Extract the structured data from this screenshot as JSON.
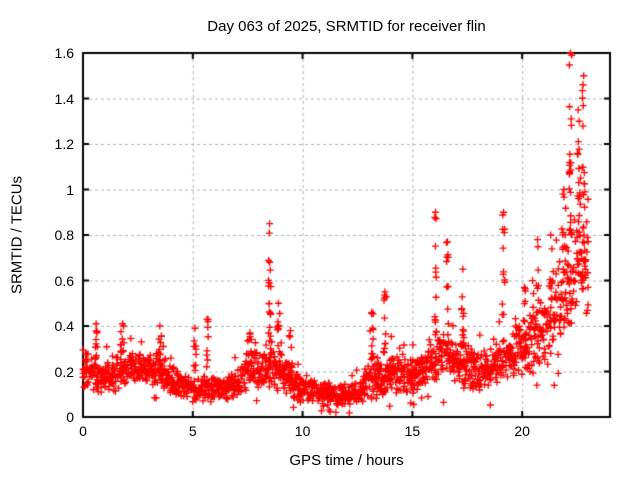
{
  "chart_data": {
    "type": "scatter",
    "title": "Day 063 of 2025, SRMTID for receiver flin",
    "xlabel": "GPS time / hours",
    "ylabel": "SRMTID / TECUs",
    "xlim": [
      0,
      24
    ],
    "ylim": [
      0,
      1.6
    ],
    "xticks": [
      0,
      5,
      10,
      15,
      20
    ],
    "xtick_labels": [
      "0",
      "5",
      "10",
      "15",
      "20"
    ],
    "yticks": [
      0,
      0.2,
      0.4,
      0.6,
      0.8,
      1,
      1.2,
      1.4,
      1.6
    ],
    "ytick_labels": [
      "0",
      "0.2",
      "0.4",
      "0.6",
      "0.8",
      "1",
      "1.2",
      "1.4",
      "1.6"
    ],
    "grid": true,
    "legend_position": "none",
    "marker": "+",
    "marker_color": "#ff0000",
    "grid_color": "#b3b3b3",
    "axis_color": "#000000",
    "text_color": "#000000",
    "time_span_hours": [
      0,
      23.0
    ],
    "band_profile": [
      [
        0.0,
        0.12,
        0.33
      ],
      [
        0.5,
        0.1,
        0.28
      ],
      [
        1.0,
        0.09,
        0.26
      ],
      [
        1.5,
        0.11,
        0.3
      ],
      [
        2.0,
        0.13,
        0.3
      ],
      [
        2.5,
        0.14,
        0.3
      ],
      [
        3.0,
        0.13,
        0.28
      ],
      [
        3.5,
        0.12,
        0.3
      ],
      [
        4.0,
        0.09,
        0.24
      ],
      [
        4.5,
        0.07,
        0.2
      ],
      [
        5.0,
        0.06,
        0.18
      ],
      [
        5.5,
        0.06,
        0.2
      ],
      [
        6.0,
        0.05,
        0.18
      ],
      [
        6.5,
        0.06,
        0.18
      ],
      [
        7.0,
        0.07,
        0.22
      ],
      [
        7.5,
        0.1,
        0.3
      ],
      [
        8.0,
        0.1,
        0.32
      ],
      [
        8.5,
        0.12,
        0.35
      ],
      [
        9.0,
        0.1,
        0.3
      ],
      [
        9.5,
        0.08,
        0.26
      ],
      [
        10.0,
        0.05,
        0.18
      ],
      [
        10.5,
        0.04,
        0.17
      ],
      [
        11.0,
        0.04,
        0.16
      ],
      [
        11.5,
        0.04,
        0.15
      ],
      [
        12.0,
        0.04,
        0.15
      ],
      [
        12.5,
        0.05,
        0.17
      ],
      [
        13.0,
        0.06,
        0.25
      ],
      [
        13.5,
        0.08,
        0.28
      ],
      [
        14.0,
        0.09,
        0.3
      ],
      [
        14.5,
        0.08,
        0.26
      ],
      [
        15.0,
        0.09,
        0.28
      ],
      [
        15.5,
        0.11,
        0.32
      ],
      [
        16.0,
        0.14,
        0.38
      ],
      [
        16.5,
        0.15,
        0.38
      ],
      [
        17.0,
        0.14,
        0.35
      ],
      [
        17.5,
        0.12,
        0.34
      ],
      [
        18.0,
        0.1,
        0.3
      ],
      [
        18.5,
        0.12,
        0.32
      ],
      [
        19.0,
        0.14,
        0.38
      ],
      [
        19.5,
        0.15,
        0.4
      ],
      [
        20.0,
        0.16,
        0.44
      ],
      [
        20.5,
        0.18,
        0.5
      ],
      [
        21.0,
        0.2,
        0.55
      ],
      [
        21.5,
        0.24,
        0.65
      ],
      [
        22.0,
        0.3,
        0.85
      ],
      [
        22.5,
        0.38,
        1.05
      ],
      [
        23.0,
        0.35,
        0.95
      ]
    ],
    "spikes": [
      [
        0.6,
        0.15,
        0.26,
        0.41,
        10
      ],
      [
        1.8,
        0.2,
        0.28,
        0.41,
        8
      ],
      [
        3.5,
        0.15,
        0.27,
        0.4,
        8
      ],
      [
        5.1,
        0.1,
        0.17,
        0.39,
        7
      ],
      [
        5.65,
        0.1,
        0.19,
        0.43,
        8
      ],
      [
        7.6,
        0.2,
        0.27,
        0.37,
        8
      ],
      [
        8.5,
        0.12,
        0.33,
        0.85,
        16
      ],
      [
        8.9,
        0.12,
        0.28,
        0.5,
        8
      ],
      [
        9.45,
        0.15,
        0.22,
        0.38,
        8
      ],
      [
        13.15,
        0.2,
        0.24,
        0.46,
        10
      ],
      [
        13.75,
        0.15,
        0.27,
        0.55,
        10
      ],
      [
        16.05,
        0.1,
        0.36,
        0.9,
        14
      ],
      [
        16.6,
        0.12,
        0.35,
        0.77,
        10
      ],
      [
        17.3,
        0.12,
        0.32,
        0.65,
        9
      ],
      [
        19.15,
        0.12,
        0.36,
        0.9,
        12
      ],
      [
        20.1,
        0.1,
        0.4,
        0.57,
        6
      ],
      [
        20.7,
        0.1,
        0.44,
        0.78,
        8
      ],
      [
        21.3,
        0.15,
        0.48,
        0.8,
        8
      ],
      [
        21.9,
        0.15,
        0.6,
        1.0,
        10
      ],
      [
        22.2,
        0.12,
        0.8,
        1.6,
        22
      ],
      [
        22.55,
        0.1,
        0.7,
        1.35,
        10
      ],
      [
        22.8,
        0.15,
        0.55,
        1.5,
        18
      ]
    ],
    "max_point": [
      22.26,
      1.59
    ],
    "notable_peaks": [
      [
        0.6,
        0.41
      ],
      [
        1.8,
        0.41
      ],
      [
        3.5,
        0.4
      ],
      [
        5.65,
        0.43
      ],
      [
        8.5,
        0.85
      ],
      [
        8.9,
        0.5
      ],
      [
        13.75,
        0.55
      ],
      [
        16.05,
        0.9
      ],
      [
        16.6,
        0.77
      ],
      [
        17.3,
        0.65
      ],
      [
        19.15,
        0.9
      ],
      [
        20.7,
        0.78
      ],
      [
        21.9,
        1.0
      ],
      [
        22.26,
        1.59
      ],
      [
        22.8,
        1.5
      ]
    ]
  }
}
